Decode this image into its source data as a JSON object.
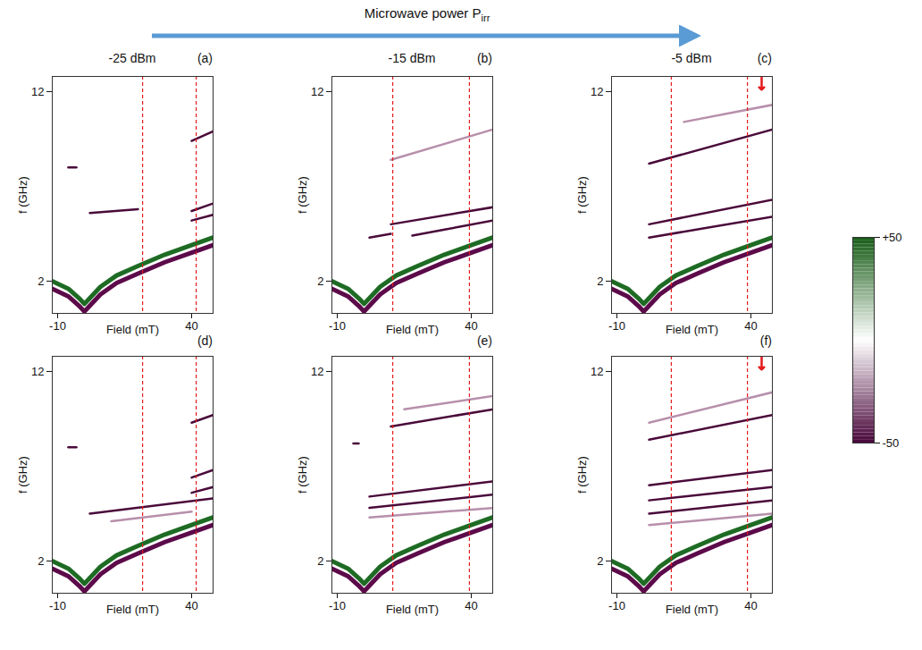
{
  "header": {
    "text": "Microwave power P",
    "subscript": "irr"
  },
  "colorbar": {
    "range": [
      -50,
      50
    ],
    "ticks": [
      {
        "value": 50,
        "label": "+50"
      },
      {
        "value": -50,
        "label": "-50"
      }
    ],
    "colors": [
      "#4b0a3d",
      "#ffffff",
      "#1a5e1a"
    ]
  },
  "chart_data": [
    {
      "type": "line",
      "title": "-25 dBm",
      "panel": "(a)",
      "xlabel": "Field (mT)",
      "ylabel": "f (GHz)",
      "xlim": [
        -12,
        48
      ],
      "ylim": [
        0.3,
        12.8
      ],
      "xticks": [
        -10,
        40
      ],
      "yticks": [
        2,
        12
      ],
      "vlines": [
        21.7,
        41.7
      ],
      "series": [
        {
          "color": "#1e6b24",
          "line_style": "band",
          "x": [
            -12,
            -6,
            -2,
            0,
            2,
            6,
            12,
            20,
            30,
            40,
            48
          ],
          "values": [
            2.0,
            1.6,
            1.1,
            0.8,
            1.1,
            1.7,
            2.3,
            2.8,
            3.4,
            3.9,
            4.3
          ]
        },
        {
          "color": "#5c0a4a",
          "line_style": "band",
          "x": [
            -12,
            -6,
            -2,
            0,
            2,
            6,
            12,
            20,
            30,
            40,
            48
          ],
          "values": [
            1.6,
            1.2,
            0.7,
            0.4,
            0.7,
            1.3,
            1.9,
            2.4,
            3.0,
            3.5,
            3.9
          ]
        },
        {
          "color": "#4a0a3a",
          "line_style": "solid",
          "x": [
            -6,
            -3
          ],
          "values": [
            8.0,
            8.0
          ]
        },
        {
          "color": "#4a0a3a",
          "line_style": "solid",
          "x": [
            2,
            20
          ],
          "values": [
            5.6,
            5.8
          ]
        },
        {
          "color": "#4a0a3a",
          "line_style": "solid",
          "x": [
            40,
            48
          ],
          "values": [
            9.4,
            9.9
          ]
        },
        {
          "color": "#4a0a3a",
          "line_style": "solid",
          "x": [
            40,
            48
          ],
          "values": [
            5.7,
            6.1
          ]
        },
        {
          "color": "#4a0a3a",
          "line_style": "solid",
          "x": [
            40,
            48
          ],
          "values": [
            5.2,
            5.5
          ]
        }
      ]
    },
    {
      "type": "line",
      "title": "-15 dBm",
      "panel": "(b)",
      "xlabel": "Field (mT)",
      "ylabel": "f (GHz)",
      "xlim": [
        -12,
        48
      ],
      "ylim": [
        0.3,
        12.8
      ],
      "xticks": [
        -10,
        40
      ],
      "yticks": [
        2,
        12
      ],
      "vlines": [
        10.7,
        39.3
      ],
      "series": [
        {
          "color": "#1e6b24",
          "line_style": "band",
          "x": [
            -12,
            -6,
            -2,
            0,
            2,
            6,
            12,
            20,
            30,
            40,
            48
          ],
          "values": [
            2.0,
            1.6,
            1.1,
            0.8,
            1.1,
            1.7,
            2.3,
            2.8,
            3.4,
            3.9,
            4.3
          ]
        },
        {
          "color": "#5c0a4a",
          "line_style": "band",
          "x": [
            -12,
            -6,
            -2,
            0,
            2,
            6,
            12,
            20,
            30,
            40,
            48
          ],
          "values": [
            1.6,
            1.2,
            0.7,
            0.4,
            0.7,
            1.3,
            1.9,
            2.4,
            3.0,
            3.5,
            3.9
          ]
        },
        {
          "color": "#b78fab",
          "line_style": "solid",
          "x": [
            10,
            48
          ],
          "values": [
            8.4,
            10.0
          ]
        },
        {
          "color": "#4a0a3a",
          "line_style": "solid",
          "x": [
            10,
            48
          ],
          "values": [
            5.0,
            5.9
          ]
        },
        {
          "color": "#4a0a3a",
          "line_style": "solid",
          "x": [
            18,
            48
          ],
          "values": [
            4.4,
            5.2
          ]
        },
        {
          "color": "#4a0a3a",
          "line_style": "solid",
          "x": [
            2,
            10
          ],
          "values": [
            4.3,
            4.5
          ]
        }
      ]
    },
    {
      "type": "line",
      "title": "-5 dBm",
      "panel": "(c)",
      "xlabel": "Field (mT)",
      "ylabel": "f (GHz)",
      "xlim": [
        -12,
        48
      ],
      "ylim": [
        0.3,
        12.8
      ],
      "xticks": [
        -10,
        40
      ],
      "yticks": [
        2,
        12
      ],
      "vlines": [
        10.3,
        38.7
      ],
      "arrows": [
        {
          "x": 44,
          "y": 12.1
        }
      ],
      "series": [
        {
          "color": "#1e6b24",
          "line_style": "band",
          "x": [
            -12,
            -6,
            -2,
            0,
            2,
            6,
            12,
            20,
            30,
            40,
            48
          ],
          "values": [
            2.0,
            1.6,
            1.1,
            0.8,
            1.1,
            1.7,
            2.3,
            2.8,
            3.4,
            3.9,
            4.3
          ]
        },
        {
          "color": "#5c0a4a",
          "line_style": "band",
          "x": [
            -12,
            -6,
            -2,
            0,
            2,
            6,
            12,
            20,
            30,
            40,
            48
          ],
          "values": [
            1.6,
            1.2,
            0.7,
            0.4,
            0.7,
            1.3,
            1.9,
            2.4,
            3.0,
            3.5,
            3.9
          ]
        },
        {
          "color": "#b78fab",
          "line_style": "solid",
          "x": [
            15,
            48
          ],
          "values": [
            10.4,
            11.3
          ]
        },
        {
          "color": "#4a0a3a",
          "line_style": "solid",
          "x": [
            2,
            48
          ],
          "values": [
            8.2,
            10.0
          ]
        },
        {
          "color": "#4a0a3a",
          "line_style": "solid",
          "x": [
            2,
            48
          ],
          "values": [
            5.0,
            6.3
          ]
        },
        {
          "color": "#4a0a3a",
          "line_style": "solid",
          "x": [
            2,
            48
          ],
          "values": [
            4.3,
            5.4
          ]
        }
      ]
    },
    {
      "type": "line",
      "panel": "(d)",
      "xlabel": "Field (mT)",
      "ylabel": "f (GHz)",
      "xlim": [
        -12,
        48
      ],
      "ylim": [
        0.3,
        12.8
      ],
      "xticks": [
        -10,
        40
      ],
      "yticks": [
        2,
        12
      ],
      "vlines": [
        21.7,
        41.7
      ],
      "series": [
        {
          "color": "#1e6b24",
          "line_style": "band",
          "x": [
            -12,
            -6,
            -2,
            0,
            2,
            6,
            12,
            20,
            30,
            40,
            48
          ],
          "values": [
            2.0,
            1.6,
            1.1,
            0.8,
            1.1,
            1.7,
            2.3,
            2.8,
            3.4,
            3.9,
            4.3
          ]
        },
        {
          "color": "#5c0a4a",
          "line_style": "band",
          "x": [
            -12,
            -6,
            -2,
            0,
            2,
            6,
            12,
            20,
            30,
            40,
            48
          ],
          "values": [
            1.6,
            1.2,
            0.7,
            0.4,
            0.7,
            1.3,
            1.9,
            2.4,
            3.0,
            3.5,
            3.9
          ]
        },
        {
          "color": "#4a0a3a",
          "line_style": "solid",
          "x": [
            -6,
            -3
          ],
          "values": [
            8.0,
            8.0
          ]
        },
        {
          "color": "#4a0a3a",
          "line_style": "solid",
          "x": [
            2,
            48
          ],
          "values": [
            4.5,
            5.3
          ]
        },
        {
          "color": "#b78fab",
          "line_style": "solid",
          "x": [
            10,
            40
          ],
          "values": [
            4.1,
            4.6
          ]
        },
        {
          "color": "#4a0a3a",
          "line_style": "solid",
          "x": [
            40,
            48
          ],
          "values": [
            9.3,
            9.7
          ]
        },
        {
          "color": "#4a0a3a",
          "line_style": "solid",
          "x": [
            40,
            48
          ],
          "values": [
            6.4,
            6.8
          ]
        },
        {
          "color": "#4a0a3a",
          "line_style": "solid",
          "x": [
            40,
            48
          ],
          "values": [
            5.6,
            5.9
          ]
        }
      ]
    },
    {
      "type": "line",
      "panel": "(e)",
      "xlabel": "Field (mT)",
      "ylabel": "f (GHz)",
      "xlim": [
        -12,
        48
      ],
      "ylim": [
        0.3,
        12.8
      ],
      "xticks": [
        -10,
        40
      ],
      "yticks": [
        2,
        12
      ],
      "vlines": [
        10.7,
        39.3
      ],
      "series": [
        {
          "color": "#1e6b24",
          "line_style": "band",
          "x": [
            -12,
            -6,
            -2,
            0,
            2,
            6,
            12,
            20,
            30,
            40,
            48
          ],
          "values": [
            2.0,
            1.6,
            1.1,
            0.8,
            1.1,
            1.7,
            2.3,
            2.8,
            3.4,
            3.9,
            4.3
          ]
        },
        {
          "color": "#5c0a4a",
          "line_style": "band",
          "x": [
            -12,
            -6,
            -2,
            0,
            2,
            6,
            12,
            20,
            30,
            40,
            48
          ],
          "values": [
            1.6,
            1.2,
            0.7,
            0.4,
            0.7,
            1.3,
            1.9,
            2.4,
            3.0,
            3.5,
            3.9
          ]
        },
        {
          "color": "#4a0a3a",
          "line_style": "solid",
          "x": [
            -4,
            -2
          ],
          "values": [
            8.2,
            8.2
          ]
        },
        {
          "color": "#4a0a3a",
          "line_style": "solid",
          "x": [
            10,
            48
          ],
          "values": [
            9.1,
            10.0
          ]
        },
        {
          "color": "#b78fab",
          "line_style": "solid",
          "x": [
            15,
            48
          ],
          "values": [
            10.0,
            10.7
          ]
        },
        {
          "color": "#4a0a3a",
          "line_style": "solid",
          "x": [
            2,
            48
          ],
          "values": [
            5.4,
            6.2
          ]
        },
        {
          "color": "#4a0a3a",
          "line_style": "solid",
          "x": [
            2,
            48
          ],
          "values": [
            4.8,
            5.5
          ]
        },
        {
          "color": "#b78fab",
          "line_style": "solid",
          "x": [
            2,
            48
          ],
          "values": [
            4.3,
            4.8
          ]
        }
      ]
    },
    {
      "type": "line",
      "panel": "(f)",
      "xlabel": "Field (mT)",
      "ylabel": "f (GHz)",
      "xlim": [
        -12,
        48
      ],
      "ylim": [
        0.3,
        12.8
      ],
      "xticks": [
        -10,
        40
      ],
      "yticks": [
        2,
        12
      ],
      "vlines": [
        10.3,
        38.7
      ],
      "arrows": [
        {
          "x": 44,
          "y": 12.1
        }
      ],
      "series": [
        {
          "color": "#1e6b24",
          "line_style": "band",
          "x": [
            -12,
            -6,
            -2,
            0,
            2,
            6,
            12,
            20,
            30,
            40,
            48
          ],
          "values": [
            2.0,
            1.6,
            1.1,
            0.8,
            1.1,
            1.7,
            2.3,
            2.8,
            3.4,
            3.9,
            4.3
          ]
        },
        {
          "color": "#5c0a4a",
          "line_style": "band",
          "x": [
            -12,
            -6,
            -2,
            0,
            2,
            6,
            12,
            20,
            30,
            40,
            48
          ],
          "values": [
            1.6,
            1.2,
            0.7,
            0.4,
            0.7,
            1.3,
            1.9,
            2.4,
            3.0,
            3.5,
            3.9
          ]
        },
        {
          "color": "#b78fab",
          "line_style": "solid",
          "x": [
            2,
            48
          ],
          "values": [
            9.3,
            10.9
          ]
        },
        {
          "color": "#4a0a3a",
          "line_style": "solid",
          "x": [
            2,
            48
          ],
          "values": [
            8.4,
            9.7
          ]
        },
        {
          "color": "#4a0a3a",
          "line_style": "solid",
          "x": [
            2,
            48
          ],
          "values": [
            6.0,
            6.8
          ]
        },
        {
          "color": "#4a0a3a",
          "line_style": "solid",
          "x": [
            2,
            48
          ],
          "values": [
            5.2,
            5.9
          ]
        },
        {
          "color": "#4a0a3a",
          "line_style": "solid",
          "x": [
            2,
            48
          ],
          "values": [
            4.5,
            5.2
          ]
        },
        {
          "color": "#b78fab",
          "line_style": "solid",
          "x": [
            2,
            48
          ],
          "values": [
            3.9,
            4.5
          ]
        }
      ]
    }
  ]
}
